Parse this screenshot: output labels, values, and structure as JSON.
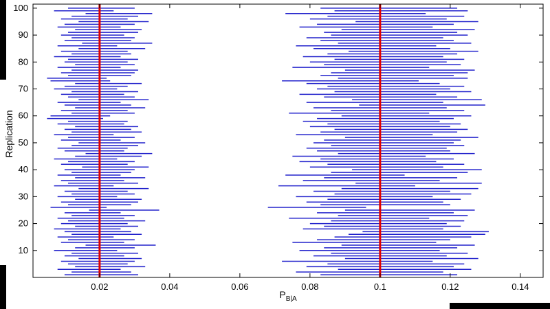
{
  "figure": {
    "background": "#ffffff",
    "outer_background": "#000000"
  },
  "chart_data": {
    "type": "interval",
    "title": "",
    "xlabel_main": "P",
    "xlabel_sub": "B|A",
    "ylabel": "Replication",
    "xlim": [
      0.001,
      0.1465
    ],
    "ylim": [
      0,
      101.5
    ],
    "x_ticks": [
      0.02,
      0.04,
      0.06,
      0.08,
      0.1,
      0.12,
      0.14
    ],
    "x_tick_labels": [
      "0.02",
      "0.04",
      "0.06",
      "0.08",
      "0.1",
      "0.12",
      "0.14"
    ],
    "y_ticks": [
      10,
      20,
      30,
      40,
      50,
      60,
      70,
      80,
      90,
      100
    ],
    "n_replications": 100,
    "interval_color": "#2222cc",
    "true_value_color": "#e00000",
    "axis_color": "#000000",
    "clusters": [
      {
        "true_value": 0.02,
        "intervals": [
          [
            0.01,
            0.031
          ],
          [
            0.012,
            0.029
          ],
          [
            0.008,
            0.026
          ],
          [
            0.013,
            0.033
          ],
          [
            0.011,
            0.028
          ],
          [
            0.009,
            0.03
          ],
          [
            0.014,
            0.032
          ],
          [
            0.01,
            0.027
          ],
          [
            0.012,
            0.031
          ],
          [
            0.007,
            0.025
          ],
          [
            0.013,
            0.03
          ],
          [
            0.016,
            0.036
          ],
          [
            0.009,
            0.027
          ],
          [
            0.011,
            0.03
          ],
          [
            0.008,
            0.024
          ],
          [
            0.012,
            0.032
          ],
          [
            0.01,
            0.029
          ],
          [
            0.007,
            0.026
          ],
          [
            0.013,
            0.031
          ],
          [
            0.009,
            0.028
          ],
          [
            0.011,
            0.033
          ],
          [
            0.008,
            0.027
          ],
          [
            0.012,
            0.03
          ],
          [
            0.01,
            0.026
          ],
          [
            0.017,
            0.037
          ],
          [
            0.006,
            0.022
          ],
          [
            0.011,
            0.029
          ],
          [
            0.009,
            0.031
          ],
          [
            0.013,
            0.032
          ],
          [
            0.008,
            0.025
          ],
          [
            0.012,
            0.03
          ],
          [
            0.01,
            0.028
          ],
          [
            0.014,
            0.034
          ],
          [
            0.007,
            0.024
          ],
          [
            0.011,
            0.031
          ],
          [
            0.009,
            0.027
          ],
          [
            0.013,
            0.033
          ],
          [
            0.008,
            0.026
          ],
          [
            0.012,
            0.029
          ],
          [
            0.01,
            0.03
          ],
          [
            0.015,
            0.034
          ],
          [
            0.009,
            0.028
          ],
          [
            0.011,
            0.03
          ],
          [
            0.007,
            0.025
          ],
          [
            0.013,
            0.032
          ],
          [
            0.016,
            0.035
          ],
          [
            0.01,
            0.027
          ],
          [
            0.008,
            0.028
          ],
          [
            0.012,
            0.031
          ],
          [
            0.014,
            0.033
          ],
          [
            0.009,
            0.026
          ],
          [
            0.011,
            0.03
          ],
          [
            0.007,
            0.024
          ],
          [
            0.012,
            0.032
          ],
          [
            0.01,
            0.029
          ],
          [
            0.013,
            0.031
          ],
          [
            0.008,
            0.027
          ],
          [
            0.011,
            0.028
          ],
          [
            0.005,
            0.021
          ],
          [
            0.006,
            0.023
          ],
          [
            0.012,
            0.03
          ],
          [
            0.009,
            0.028
          ],
          [
            0.013,
            0.033
          ],
          [
            0.01,
            0.029
          ],
          [
            0.008,
            0.026
          ],
          [
            0.014,
            0.034
          ],
          [
            0.011,
            0.03
          ],
          [
            0.009,
            0.027
          ],
          [
            0.012,
            0.031
          ],
          [
            0.007,
            0.025
          ],
          [
            0.01,
            0.028
          ],
          [
            0.013,
            0.032
          ],
          [
            0.006,
            0.023
          ],
          [
            0.005,
            0.022
          ],
          [
            0.011,
            0.029
          ],
          [
            0.009,
            0.03
          ],
          [
            0.012,
            0.031
          ],
          [
            0.008,
            0.026
          ],
          [
            0.013,
            0.03
          ],
          [
            0.01,
            0.028
          ],
          [
            0.011,
            0.031
          ],
          [
            0.007,
            0.026
          ],
          [
            0.012,
            0.029
          ],
          [
            0.009,
            0.028
          ],
          [
            0.014,
            0.033
          ],
          [
            0.008,
            0.025
          ],
          [
            0.015,
            0.035
          ],
          [
            0.01,
            0.029
          ],
          [
            0.012,
            0.03
          ],
          [
            0.009,
            0.027
          ],
          [
            0.011,
            0.031
          ],
          [
            0.013,
            0.032
          ],
          [
            0.008,
            0.026
          ],
          [
            0.01,
            0.03
          ],
          [
            0.014,
            0.034
          ],
          [
            0.009,
            0.028
          ],
          [
            0.012,
            0.031
          ],
          [
            0.016,
            0.035
          ],
          [
            0.007,
            0.024
          ],
          [
            0.011,
            0.03
          ]
        ]
      },
      {
        "true_value": 0.1,
        "intervals": [
          [
            0.083,
            0.122
          ],
          [
            0.076,
            0.118
          ],
          [
            0.088,
            0.126
          ],
          [
            0.079,
            0.121
          ],
          [
            0.085,
            0.124
          ],
          [
            0.072,
            0.115
          ],
          [
            0.09,
            0.128
          ],
          [
            0.081,
            0.119
          ],
          [
            0.086,
            0.125
          ],
          [
            0.077,
            0.117
          ],
          [
            0.084,
            0.122
          ],
          [
            0.089,
            0.127
          ],
          [
            0.075,
            0.116
          ],
          [
            0.082,
            0.12
          ],
          [
            0.087,
            0.126
          ],
          [
            0.091,
            0.13
          ],
          [
            0.095,
            0.131
          ],
          [
            0.078,
            0.118
          ],
          [
            0.084,
            0.123
          ],
          [
            0.08,
            0.119
          ],
          [
            0.086,
            0.124
          ],
          [
            0.074,
            0.114
          ],
          [
            0.088,
            0.125
          ],
          [
            0.082,
            0.121
          ],
          [
            0.09,
            0.127
          ],
          [
            0.068,
            0.096
          ],
          [
            0.083,
            0.12
          ],
          [
            0.079,
            0.118
          ],
          [
            0.085,
            0.123
          ],
          [
            0.076,
            0.115
          ],
          [
            0.087,
            0.126
          ],
          [
            0.081,
            0.12
          ],
          [
            0.089,
            0.128
          ],
          [
            0.071,
            0.11
          ],
          [
            0.093,
            0.129
          ],
          [
            0.078,
            0.117
          ],
          [
            0.084,
            0.122
          ],
          [
            0.073,
            0.107
          ],
          [
            0.086,
            0.125
          ],
          [
            0.092,
            0.129
          ],
          [
            0.08,
            0.118
          ],
          [
            0.085,
            0.124
          ],
          [
            0.077,
            0.116
          ],
          [
            0.083,
            0.121
          ],
          [
            0.075,
            0.113
          ],
          [
            0.088,
            0.127
          ],
          [
            0.082,
            0.12
          ],
          [
            0.079,
            0.119
          ],
          [
            0.086,
            0.124
          ],
          [
            0.081,
            0.121
          ],
          [
            0.084,
            0.123
          ],
          [
            0.09,
            0.128
          ],
          [
            0.076,
            0.115
          ],
          [
            0.083,
            0.122
          ],
          [
            0.087,
            0.125
          ],
          [
            0.08,
            0.12
          ],
          [
            0.085,
            0.123
          ],
          [
            0.078,
            0.117
          ],
          [
            0.082,
            0.121
          ],
          [
            0.089,
            0.126
          ],
          [
            0.074,
            0.114
          ],
          [
            0.086,
            0.124
          ],
          [
            0.081,
            0.119
          ],
          [
            0.094,
            0.13
          ],
          [
            0.079,
            0.118
          ],
          [
            0.092,
            0.129
          ],
          [
            0.084,
            0.122
          ],
          [
            0.077,
            0.116
          ],
          [
            0.087,
            0.126
          ],
          [
            0.082,
            0.12
          ],
          [
            0.085,
            0.124
          ],
          [
            0.079,
            0.117
          ],
          [
            0.072,
            0.111
          ],
          [
            0.088,
            0.125
          ],
          [
            0.083,
            0.121
          ],
          [
            0.086,
            0.125
          ],
          [
            0.09,
            0.127
          ],
          [
            0.075,
            0.114
          ],
          [
            0.084,
            0.123
          ],
          [
            0.08,
            0.119
          ],
          [
            0.087,
            0.124
          ],
          [
            0.078,
            0.118
          ],
          [
            0.085,
            0.122
          ],
          [
            0.091,
            0.128
          ],
          [
            0.081,
            0.12
          ],
          [
            0.076,
            0.116
          ],
          [
            0.088,
            0.126
          ],
          [
            0.083,
            0.121
          ],
          [
            0.079,
            0.118
          ],
          [
            0.086,
            0.125
          ],
          [
            0.084,
            0.122
          ],
          [
            0.089,
            0.127
          ],
          [
            0.077,
            0.115
          ],
          [
            0.082,
            0.121
          ],
          [
            0.093,
            0.128
          ],
          [
            0.08,
            0.119
          ],
          [
            0.085,
            0.124
          ],
          [
            0.073,
            0.113
          ],
          [
            0.087,
            0.125
          ],
          [
            0.083,
            0.122
          ]
        ]
      }
    ]
  }
}
